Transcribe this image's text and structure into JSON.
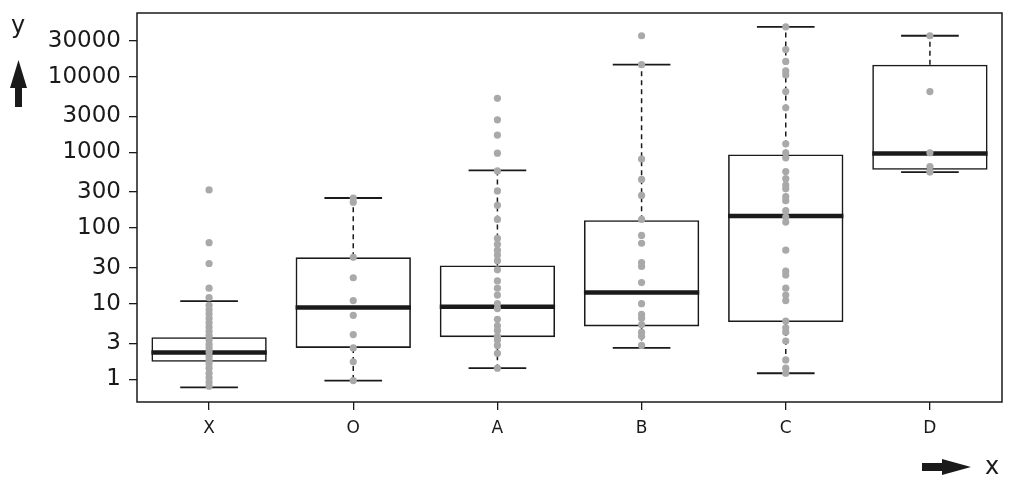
{
  "chart_data": {
    "type": "box",
    "xlabel": "x",
    "ylabel": "y",
    "categories": [
      "X",
      "O",
      "A",
      "B",
      "C",
      "D"
    ],
    "log": true,
    "ylim": [
      0.5,
      70000
    ],
    "yticks": [
      1,
      3,
      10,
      30,
      100,
      300,
      1000,
      3000,
      10000,
      30000
    ],
    "series": [
      {
        "color": "#1a1a1a",
        "boxes": [
          {
            "low": 0.78,
            "q1": 1.7,
            "median": 2.25,
            "q3": 3.6,
            "high": 10.8
          },
          {
            "low": 0.96,
            "q1": 2.6,
            "median": 8.9,
            "q3": 41,
            "high": 250
          },
          {
            "low": 1.4,
            "q1": 3.6,
            "median": 9.1,
            "q3": 32,
            "high": 580
          },
          {
            "low": 2.6,
            "q1": 5,
            "median": 14,
            "q3": 127,
            "high": 14500
          },
          {
            "low": 1.2,
            "q1": 5.7,
            "median": 144,
            "q3": 940,
            "high": 46000
          },
          {
            "low": 550,
            "q1": 590,
            "median": 970,
            "q3": 14500,
            "high": 35000
          }
        ]
      },
      {
        "type": "scatter",
        "color": "#a9a9a9",
        "marker": "circle",
        "x": [
          "X",
          "X",
          "X",
          "X",
          "X",
          "X",
          "X",
          "X",
          "X",
          "X",
          "X",
          "X",
          "X",
          "X",
          "X",
          "X",
          "X",
          "X",
          "X",
          "X",
          "X",
          "X",
          "X",
          "X",
          "X",
          "O",
          "O",
          "O",
          "O",
          "O",
          "O",
          "O",
          "O",
          "O",
          "O",
          "A",
          "A",
          "A",
          "A",
          "A",
          "A",
          "A",
          "A",
          "A",
          "A",
          "A",
          "A",
          "A",
          "A",
          "A",
          "A",
          "A",
          "A",
          "A",
          "A",
          "A",
          "A",
          "A",
          "A",
          "A",
          "A",
          "A",
          "B",
          "B",
          "B",
          "B",
          "B",
          "B",
          "B",
          "B",
          "B",
          "B",
          "B",
          "B",
          "B",
          "B",
          "B",
          "B",
          "B",
          "B",
          "C",
          "C",
          "C",
          "C",
          "C",
          "C",
          "C",
          "C",
          "C",
          "C",
          "C",
          "C",
          "C",
          "C",
          "C",
          "C",
          "C",
          "C",
          "C",
          "C",
          "C",
          "C",
          "C",
          "C",
          "C",
          "C",
          "C",
          "C",
          "C",
          "C",
          "C",
          "C",
          "D",
          "D",
          "D",
          "D",
          "D"
        ],
        "values": [
          320,
          64,
          34,
          16,
          12,
          9.5,
          8.3,
          7.3,
          6.4,
          5.6,
          4.9,
          4.3,
          3.8,
          3.3,
          2.9,
          2.6,
          2.3,
          2,
          1.8,
          1.6,
          1.4,
          1.2,
          1.05,
          0.92,
          0.81,
          250,
          220,
          41,
          22,
          11,
          7,
          3.9,
          2.6,
          1.7,
          0.96,
          5200,
          2700,
          1700,
          980,
          570,
          310,
          200,
          130,
          73,
          61,
          51,
          44,
          37,
          28,
          20,
          16,
          13,
          10,
          8.6,
          6.2,
          5.1,
          4.4,
          3.7,
          3.3,
          2.8,
          2.2,
          1.4,
          35000,
          14500,
          820,
          440,
          270,
          130,
          80,
          63,
          35,
          31,
          19,
          10,
          7.2,
          6.4,
          5.3,
          4.2,
          3.7,
          2.8,
          46000,
          23000,
          16000,
          12000,
          10600,
          6400,
          3900,
          1300,
          990,
          850,
          560,
          450,
          370,
          330,
          260,
          230,
          170,
          140,
          120,
          51,
          27,
          24,
          16,
          13,
          11,
          5.9,
          4.8,
          4.2,
          3.2,
          1.8,
          1.4,
          1.2,
          35000,
          6400,
          990,
          650,
          550
        ]
      }
    ]
  }
}
